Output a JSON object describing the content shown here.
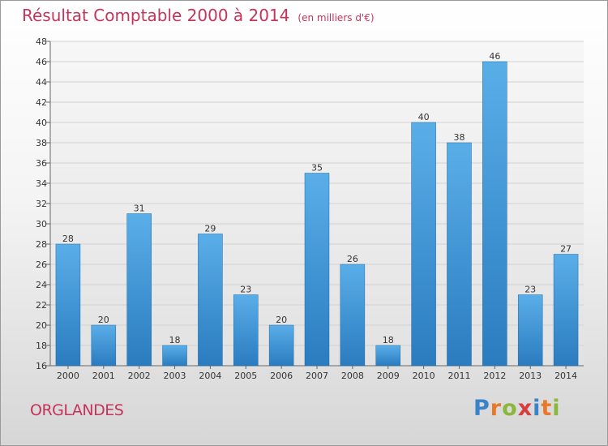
{
  "header": {
    "title": "Résultat Comptable 2000 à 2014",
    "unit": "(en milliers d'€)"
  },
  "footer": {
    "commune": "ORGLANDES",
    "logo_text": "Proxiti"
  },
  "colors": {
    "title": "#c4345a",
    "bar_light": "#5aaee8",
    "bar_dark": "#2a7cbf",
    "logo": [
      "#3a83c9",
      "#e8792a",
      "#8ab83a",
      "#d83c3c",
      "#3a83c9",
      "#e8792a",
      "#8ab83a"
    ]
  },
  "chart_data": {
    "type": "bar",
    "title": "Résultat Comptable 2000 à 2014",
    "subtitle": "(en milliers d'€)",
    "xlabel": "",
    "ylabel": "",
    "categories": [
      "2000",
      "2001",
      "2002",
      "2003",
      "2004",
      "2005",
      "2006",
      "2007",
      "2008",
      "2009",
      "2010",
      "2011",
      "2012",
      "2013",
      "2014"
    ],
    "values": [
      28,
      20,
      31,
      18,
      29,
      23,
      20,
      35,
      26,
      18,
      40,
      38,
      46,
      23,
      27
    ],
    "ylim": [
      16,
      48
    ],
    "yticks": [
      16,
      18,
      20,
      22,
      24,
      26,
      28,
      30,
      32,
      34,
      36,
      38,
      40,
      42,
      44,
      46,
      48
    ],
    "grid": true,
    "legend": "none"
  }
}
